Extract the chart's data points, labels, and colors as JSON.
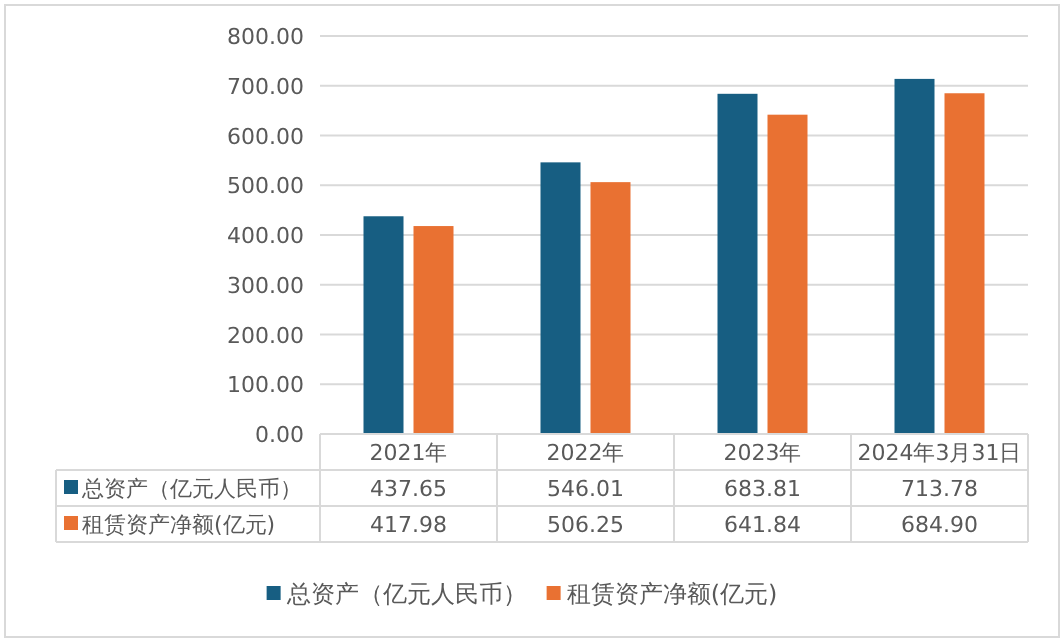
{
  "chart_data": {
    "type": "bar",
    "categories": [
      "2021年",
      "2022年",
      "2023年",
      "2024年3月31日"
    ],
    "series": [
      {
        "name": "总资产（亿元人民币）",
        "color": "#175e82",
        "values": [
          437.65,
          546.01,
          683.81,
          713.78
        ],
        "value_labels": [
          "437.65",
          "546.01",
          "683.81",
          "713.78"
        ]
      },
      {
        "name": "租赁资产净额(亿元)",
        "color": "#e97132",
        "values": [
          417.98,
          506.25,
          641.84,
          684.9
        ],
        "value_labels": [
          "417.98",
          "506.25",
          "641.84",
          "684.90"
        ]
      }
    ],
    "ylim": [
      0,
      800
    ],
    "yticks": [
      {
        "value": 0,
        "label": "0.00"
      },
      {
        "value": 100,
        "label": "100.00"
      },
      {
        "value": 200,
        "label": "200.00"
      },
      {
        "value": 300,
        "label": "300.00"
      },
      {
        "value": 400,
        "label": "400.00"
      },
      {
        "value": 500,
        "label": "500.00"
      },
      {
        "value": 600,
        "label": "600.00"
      },
      {
        "value": 700,
        "label": "700.00"
      },
      {
        "value": 800,
        "label": "800.00"
      }
    ],
    "grid": "y",
    "legend": "bottom"
  }
}
